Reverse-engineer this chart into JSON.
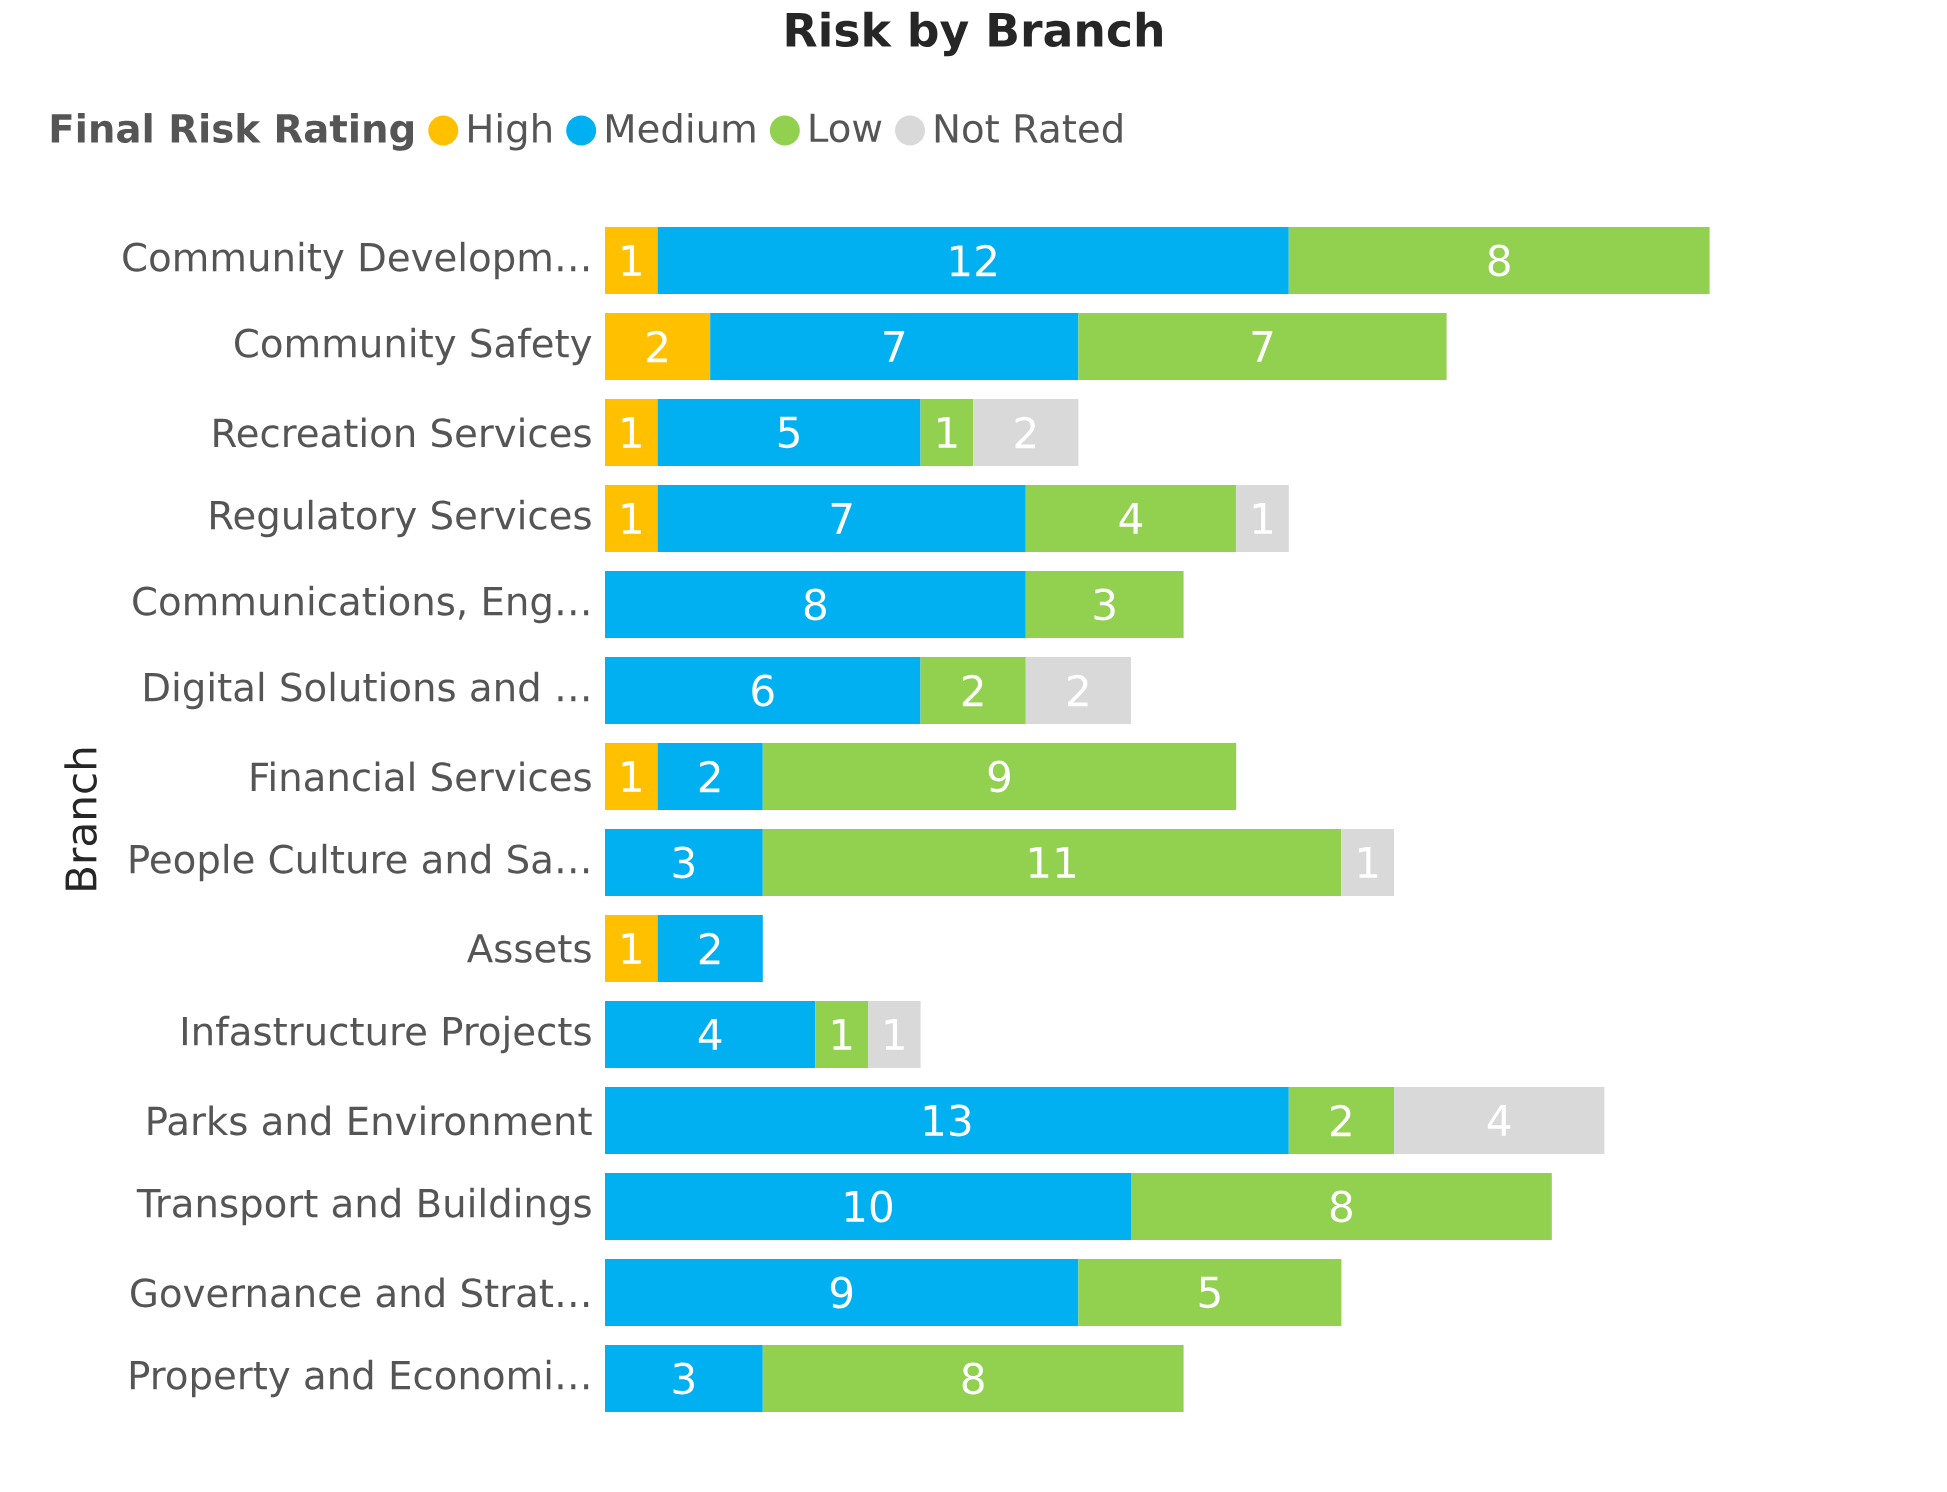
{
  "chart_data": {
    "type": "bar",
    "orientation": "horizontal",
    "stacked": true,
    "data_labels": true,
    "title": "Risk by Branch",
    "ylabel": "Branch",
    "legend_title": "Final Risk Rating",
    "legend": "top left",
    "categories": [
      "Community Developm…",
      "Community Safety",
      "Recreation Services",
      "Regulatory Services",
      "Communications, Eng…",
      "Digital Solutions and …",
      "Financial Services",
      "People Culture and Sa…",
      "Assets",
      "Infastructure Projects",
      "Parks and Environment",
      "Transport and Buildings",
      "Governance and Strat…",
      "Property and Economi…"
    ],
    "series": [
      {
        "name": "High",
        "color": "#ffc000",
        "values": [
          1,
          2,
          1,
          1,
          null,
          null,
          1,
          null,
          1,
          null,
          null,
          null,
          null,
          null
        ]
      },
      {
        "name": "Medium",
        "color": "#00b0f0",
        "values": [
          12,
          7,
          5,
          7,
          8,
          6,
          2,
          3,
          2,
          4,
          13,
          10,
          9,
          3
        ]
      },
      {
        "name": "Low",
        "color": "#92d050",
        "values": [
          8,
          7,
          1,
          4,
          3,
          2,
          9,
          11,
          null,
          1,
          2,
          8,
          5,
          8
        ]
      },
      {
        "name": "Not Rated",
        "color": "#d9d9d9",
        "values": [
          null,
          null,
          2,
          1,
          null,
          2,
          null,
          1,
          null,
          1,
          4,
          null,
          null,
          null
        ]
      }
    ]
  }
}
